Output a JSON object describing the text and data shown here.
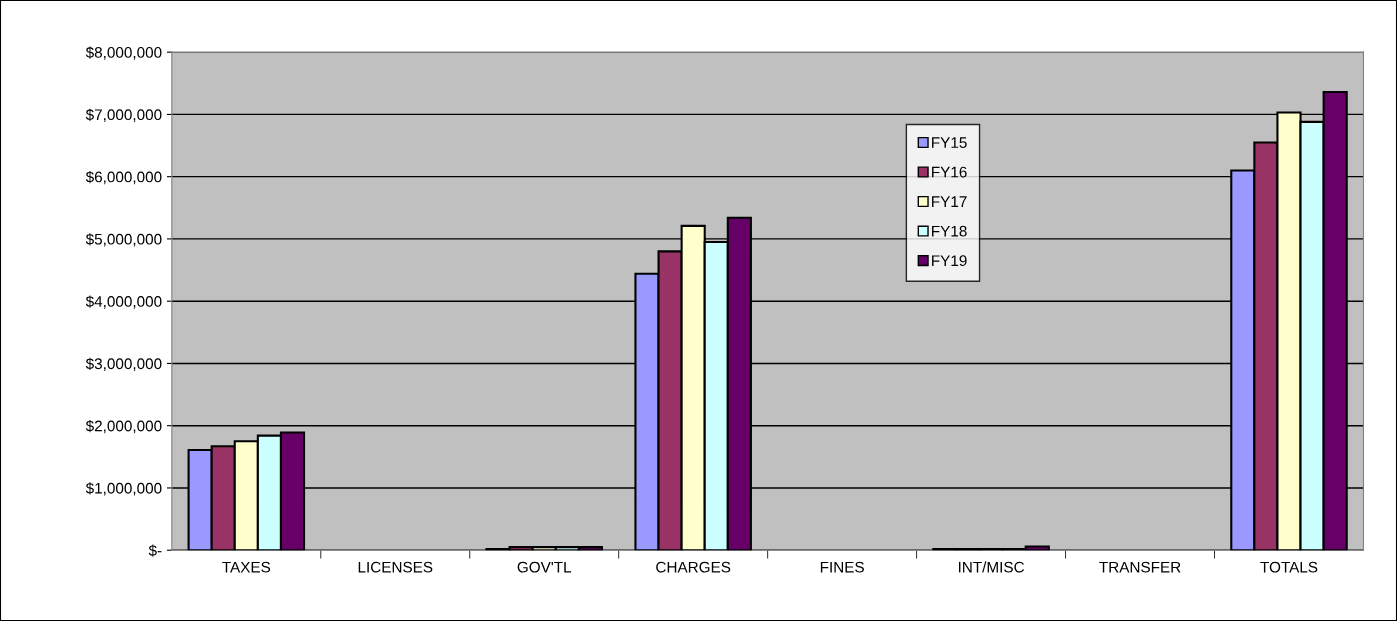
{
  "chart_data": {
    "type": "bar",
    "categories": [
      "TAXES",
      "LICENSES",
      "GOV'TL",
      "CHARGES",
      "FINES",
      "INT/MISC",
      "TRANSFER",
      "TOTALS"
    ],
    "series": [
      {
        "name": "FY15",
        "color": "#9999ff",
        "values": [
          1610000,
          0,
          20000,
          4440000,
          0,
          20000,
          0,
          6100000
        ]
      },
      {
        "name": "FY16",
        "color": "#993366",
        "values": [
          1670000,
          0,
          50000,
          4800000,
          0,
          20000,
          0,
          6550000
        ]
      },
      {
        "name": "FY17",
        "color": "#ffffcc",
        "values": [
          1750000,
          0,
          50000,
          5210000,
          0,
          20000,
          0,
          7030000
        ]
      },
      {
        "name": "FY18",
        "color": "#ccffff",
        "values": [
          1840000,
          0,
          50000,
          4950000,
          0,
          20000,
          0,
          6880000
        ]
      },
      {
        "name": "FY19",
        "color": "#660066",
        "values": [
          1890000,
          0,
          50000,
          5340000,
          0,
          60000,
          0,
          7360000
        ]
      }
    ],
    "ylim": [
      0,
      8000000
    ],
    "yticks": [
      {
        "value": 0,
        "label": "$-"
      },
      {
        "value": 1000000,
        "label": "$1,000,000"
      },
      {
        "value": 2000000,
        "label": "$2,000,000"
      },
      {
        "value": 3000000,
        "label": "$3,000,000"
      },
      {
        "value": 4000000,
        "label": "$4,000,000"
      },
      {
        "value": 5000000,
        "label": "$5,000,000"
      },
      {
        "value": 6000000,
        "label": "$6,000,000"
      },
      {
        "value": 7000000,
        "label": "$7,000,000"
      },
      {
        "value": 8000000,
        "label": "$8,000,000"
      }
    ],
    "grid": "y",
    "legend": "top",
    "marker": "square"
  }
}
